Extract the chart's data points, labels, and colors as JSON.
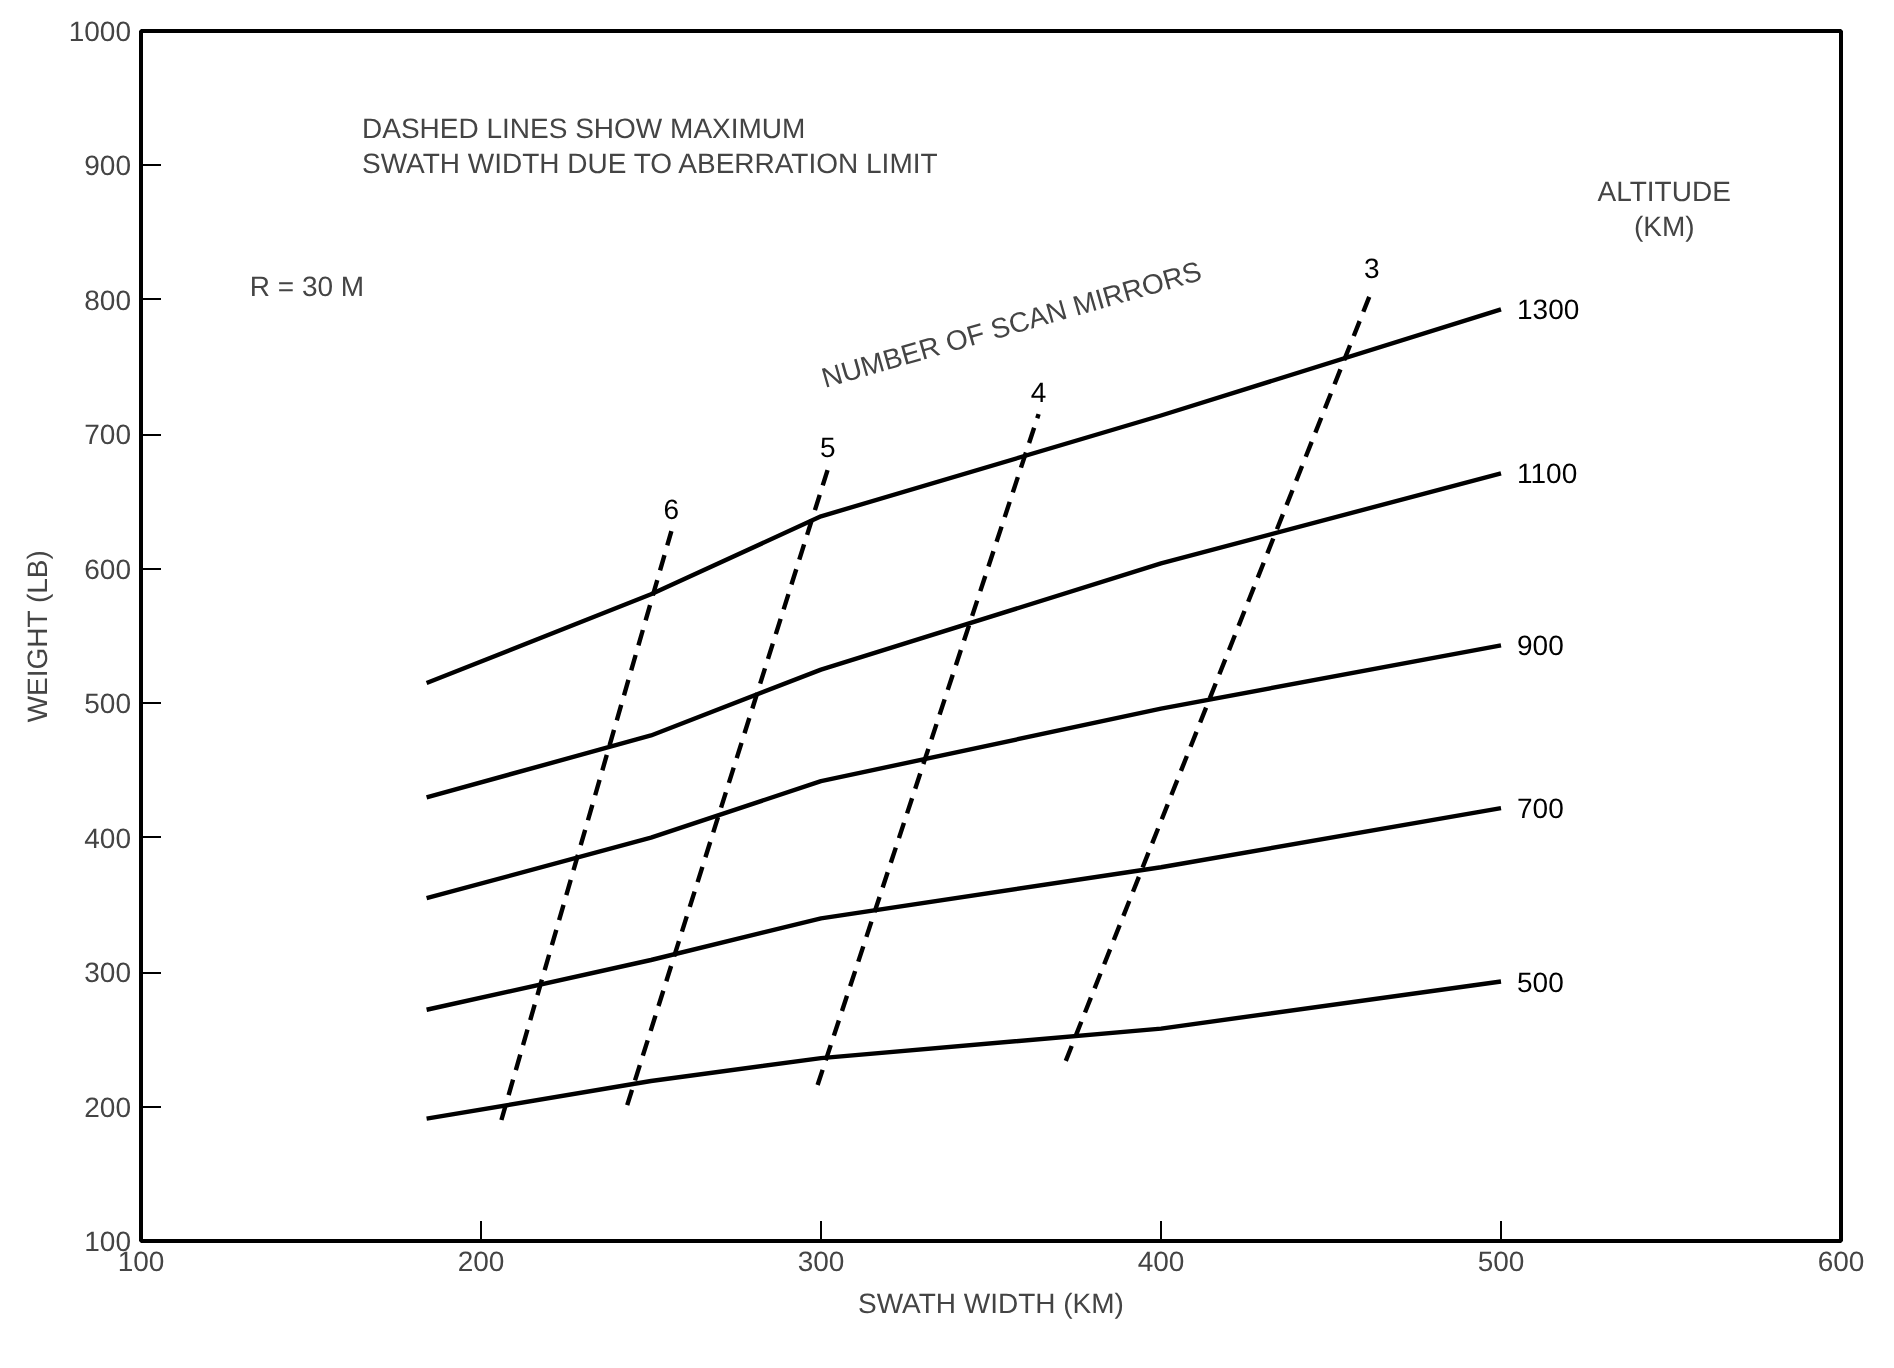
{
  "chart_data": {
    "type": "line",
    "xlabel": "SWATH WIDTH (KM)",
    "ylabel": "WEIGHT (LB)",
    "xlim": [
      100,
      600
    ],
    "xticks": [
      100,
      200,
      300,
      400,
      500,
      600
    ],
    "ylim": [
      100,
      1000
    ],
    "yticks": [
      100,
      200,
      300,
      400,
      500,
      600,
      700,
      800,
      900,
      1000
    ],
    "grid": false,
    "marker": "none",
    "annotations": [
      "DASHED LINES SHOW MAXIMUM\nSWATH WIDTH DUE TO ABERRATION LIMIT",
      "R = 30 M",
      "ALTITUDE\n(KM)",
      "NUMBER OF SCAN MIRRORS"
    ],
    "series": [
      {
        "name": "1300",
        "color": "#000000",
        "line_style": "solid",
        "x": [
          184,
          250,
          300,
          400,
          500
        ],
        "values": [
          515,
          581,
          639,
          714,
          793
        ]
      },
      {
        "name": "1100",
        "color": "#000000",
        "line_style": "solid",
        "x": [
          184,
          250,
          300,
          400,
          500
        ],
        "values": [
          430,
          476,
          525,
          604,
          671
        ]
      },
      {
        "name": "900",
        "color": "#000000",
        "line_style": "solid",
        "x": [
          184,
          250,
          300,
          400,
          500
        ],
        "values": [
          355,
          400,
          442,
          496,
          543
        ]
      },
      {
        "name": "700",
        "color": "#000000",
        "line_style": "solid",
        "x": [
          184,
          250,
          300,
          400,
          500
        ],
        "values": [
          272,
          309,
          340,
          378,
          422
        ]
      },
      {
        "name": "500",
        "color": "#000000",
        "line_style": "solid",
        "x": [
          184,
          250,
          300,
          400,
          500
        ],
        "values": [
          191,
          219,
          236,
          258,
          293
        ]
      },
      {
        "name": "6",
        "color": "#000000",
        "line_style": "dashed",
        "x": [
          206,
          256
        ],
        "values": [
          190,
          628
        ]
      },
      {
        "name": "5",
        "color": "#000000",
        "line_style": "dashed",
        "x": [
          243,
          302
        ],
        "values": [
          201,
          674
        ]
      },
      {
        "name": "4",
        "color": "#000000",
        "line_style": "dashed",
        "x": [
          299,
          364
        ],
        "values": [
          216,
          715
        ]
      },
      {
        "name": "3",
        "color": "#000000",
        "line_style": "dashed",
        "x": [
          372,
          462
        ],
        "values": [
          234,
          807
        ]
      }
    ]
  }
}
